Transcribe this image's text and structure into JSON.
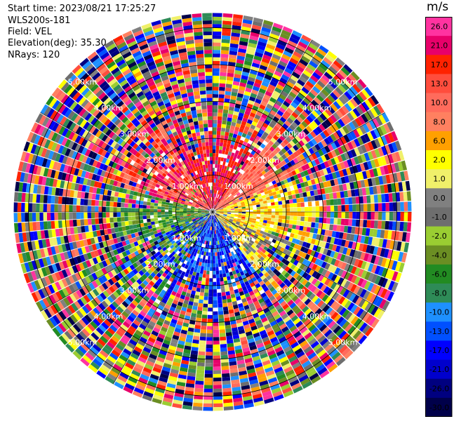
{
  "header": {
    "start_time": "Start time: 2023/08/21 17:25:27",
    "instrument": "WLS200s-181",
    "field": "Field: VEL",
    "elevation": "Elevation(deg): 35.30",
    "nrays": "NRays: 120"
  },
  "colorbar": {
    "unit": "m/s",
    "levels": [
      {
        "label": "26.0",
        "color": "#ff33a0"
      },
      {
        "label": "21.0",
        "color": "#e8006a"
      },
      {
        "label": "17.0",
        "color": "#ff2200"
      },
      {
        "label": "13.0",
        "color": "#ff4d3d"
      },
      {
        "label": "10.0",
        "color": "#ff6b5c"
      },
      {
        "label": "8.0",
        "color": "#ff8060"
      },
      {
        "label": "6.0",
        "color": "#ffa000"
      },
      {
        "label": "2.0",
        "color": "#ffff00"
      },
      {
        "label": "1.0",
        "color": "#f0f06a"
      },
      {
        "label": "0.0",
        "color": "#808080"
      },
      {
        "label": "-1.0",
        "color": "#6e6e6e"
      },
      {
        "label": "-2.0",
        "color": "#9acd32"
      },
      {
        "label": "-4.0",
        "color": "#6b8e23"
      },
      {
        "label": "-6.0",
        "color": "#228b22"
      },
      {
        "label": "-8.0",
        "color": "#2e8b57"
      },
      {
        "label": "-10.0",
        "color": "#1e90ff"
      },
      {
        "label": "-13.0",
        "color": "#0050ff"
      },
      {
        "label": "-17.0",
        "color": "#0000ff"
      },
      {
        "label": "-21.0",
        "color": "#0000cd"
      },
      {
        "label": "-26.0",
        "color": "#000080"
      },
      {
        "label": "-30.0",
        "color": "#00004a"
      }
    ]
  },
  "chart_data": {
    "type": "heatmap",
    "field": "VEL",
    "nrays": 120,
    "range_rings_km": [
      1.0,
      2.0,
      3.0,
      4.0,
      5.0
    ],
    "ring_labels": [
      "1.00km",
      "2.00km",
      "3.00km",
      "4.00km",
      "5.00km"
    ],
    "max_range_km": 5.4,
    "near_field_pattern": {
      "north": "red (17 to 21 m/s)",
      "northeast": "orange-red (8 to 13 m/s)",
      "east": "yellow (1 to 6 m/s)",
      "southwest": "green (-2 to -8 m/s)",
      "south": "blue (-10 to -21 m/s)"
    },
    "outer_pattern": "noise (random colors beyond ~3 km)"
  }
}
